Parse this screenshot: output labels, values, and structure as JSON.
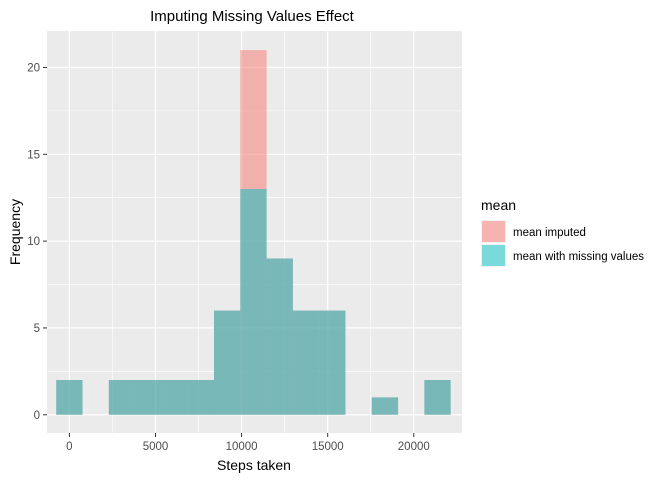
{
  "chart_data": {
    "type": "bar",
    "title": "Imputing Missing Values Effect",
    "xlabel": "Steps taken",
    "ylabel": "Frequency",
    "xlim": [
      -1300,
      22800
    ],
    "ylim": [
      -1.05,
      22.1
    ],
    "x_ticks": [
      0,
      5000,
      10000,
      15000,
      20000
    ],
    "x_tick_labels": [
      "0",
      "5000",
      "10000",
      "15000",
      "20000"
    ],
    "y_ticks": [
      0,
      5,
      10,
      15,
      20
    ],
    "y_tick_labels": [
      "0",
      "5",
      "10",
      "15",
      "20"
    ],
    "bin_width": 1527,
    "legend": {
      "title": "mean",
      "position": "right",
      "entries": [
        "mean imputed",
        "mean with missing values"
      ]
    },
    "series": [
      {
        "name": "mean imputed",
        "color": "#F8766D",
        "bins": [
          {
            "center": 0,
            "count": 2
          },
          {
            "center": 3054,
            "count": 2
          },
          {
            "center": 4581,
            "count": 2
          },
          {
            "center": 6108,
            "count": 2
          },
          {
            "center": 7635,
            "count": 2
          },
          {
            "center": 9162,
            "count": 6
          },
          {
            "center": 10689,
            "count": 21
          },
          {
            "center": 12216,
            "count": 9
          },
          {
            "center": 13743,
            "count": 6
          },
          {
            "center": 15270,
            "count": 6
          },
          {
            "center": 18324,
            "count": 1
          },
          {
            "center": 21378,
            "count": 2
          }
        ]
      },
      {
        "name": "mean with missing values",
        "color": "#00BFC4",
        "bins": [
          {
            "center": 0,
            "count": 2
          },
          {
            "center": 3054,
            "count": 2
          },
          {
            "center": 4581,
            "count": 2
          },
          {
            "center": 6108,
            "count": 2
          },
          {
            "center": 7635,
            "count": 2
          },
          {
            "center": 9162,
            "count": 6
          },
          {
            "center": 10689,
            "count": 13
          },
          {
            "center": 12216,
            "count": 9
          },
          {
            "center": 13743,
            "count": 6
          },
          {
            "center": 15270,
            "count": 6
          },
          {
            "center": 18324,
            "count": 1
          },
          {
            "center": 21378,
            "count": 2
          }
        ]
      }
    ],
    "grid": true,
    "bar_opacity": 0.5
  }
}
